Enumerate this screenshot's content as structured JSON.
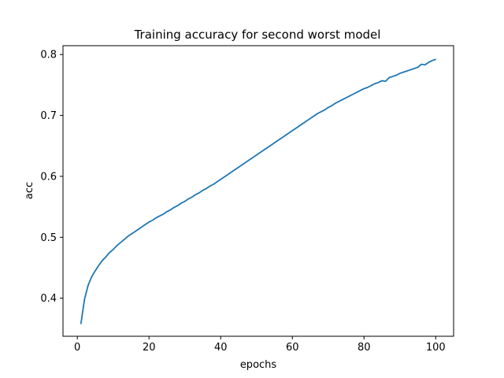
{
  "chart_data": {
    "type": "line",
    "title": "Training accuracy for second worst model",
    "xlabel": "epochs",
    "ylabel": "acc",
    "xlim": [
      -4,
      105
    ],
    "ylim": [
      0.3375,
      0.8145
    ],
    "xticks": [
      0,
      20,
      40,
      60,
      80,
      100
    ],
    "yticks": [
      0.4,
      0.5,
      0.6,
      0.7,
      0.8
    ],
    "grid": false,
    "series": [
      {
        "color": "#1f77b4",
        "x": [
          1,
          2,
          3,
          4,
          5,
          6,
          7,
          8,
          9,
          10,
          11,
          12,
          13,
          14,
          15,
          16,
          17,
          18,
          19,
          20,
          21,
          22,
          23,
          24,
          25,
          26,
          27,
          28,
          29,
          30,
          31,
          32,
          33,
          34,
          35,
          36,
          37,
          38,
          39,
          40,
          41,
          42,
          43,
          44,
          45,
          46,
          47,
          48,
          49,
          50,
          51,
          52,
          53,
          54,
          55,
          56,
          57,
          58,
          59,
          60,
          61,
          62,
          63,
          64,
          65,
          66,
          67,
          68,
          69,
          70,
          71,
          72,
          73,
          74,
          75,
          76,
          77,
          78,
          79,
          80,
          81,
          82,
          83,
          84,
          85,
          86,
          87,
          88,
          89,
          90,
          91,
          92,
          93,
          94,
          95,
          96,
          97,
          98,
          99,
          100
        ],
        "y": [
          0.358,
          0.398,
          0.421,
          0.435,
          0.445,
          0.454,
          0.462,
          0.468,
          0.475,
          0.48,
          0.486,
          0.491,
          0.496,
          0.501,
          0.505,
          0.509,
          0.513,
          0.517,
          0.521,
          0.525,
          0.528,
          0.532,
          0.535,
          0.538,
          0.542,
          0.545,
          0.549,
          0.552,
          0.556,
          0.559,
          0.563,
          0.566,
          0.57,
          0.573,
          0.577,
          0.58,
          0.584,
          0.587,
          0.591,
          0.595,
          0.599,
          0.603,
          0.607,
          0.611,
          0.615,
          0.619,
          0.623,
          0.627,
          0.631,
          0.635,
          0.639,
          0.643,
          0.647,
          0.651,
          0.655,
          0.659,
          0.663,
          0.667,
          0.671,
          0.675,
          0.679,
          0.683,
          0.687,
          0.691,
          0.695,
          0.699,
          0.703,
          0.706,
          0.709,
          0.713,
          0.716,
          0.72,
          0.723,
          0.726,
          0.729,
          0.732,
          0.735,
          0.738,
          0.741,
          0.744,
          0.746,
          0.749,
          0.752,
          0.754,
          0.757,
          0.756,
          0.762,
          0.764,
          0.766,
          0.769,
          0.771,
          0.773,
          0.775,
          0.777,
          0.779,
          0.784,
          0.783,
          0.787,
          0.79,
          0.792
        ]
      }
    ]
  }
}
